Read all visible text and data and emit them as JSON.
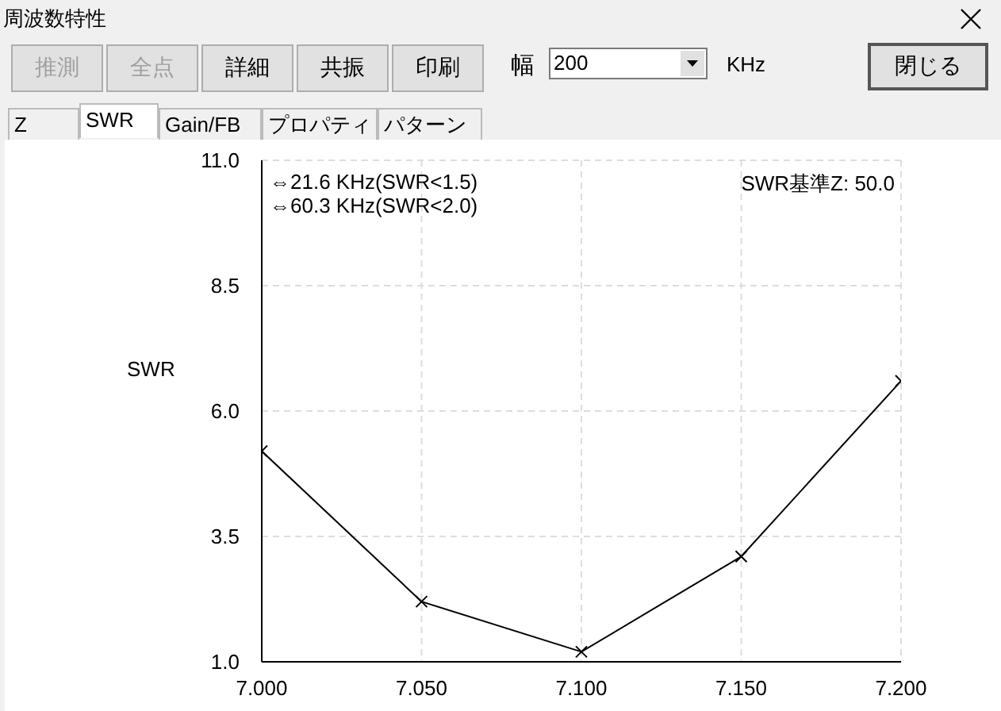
{
  "chart_data": {
    "type": "line",
    "title": "周波数特性",
    "ylabel": "SWR",
    "x": [
      7.0,
      7.05,
      7.1,
      7.15,
      7.2
    ],
    "series": [
      {
        "color": "#000000",
        "values": [
          5.2,
          2.2,
          1.2,
          3.1,
          6.6
        ]
      }
    ],
    "xlim": [
      7.0,
      7.2
    ],
    "xticks": [
      {
        "value": 7.0,
        "label": "7.000"
      },
      {
        "value": 7.05,
        "label": "7.050"
      },
      {
        "value": 7.1,
        "label": "7.100"
      },
      {
        "value": 7.15,
        "label": "7.150"
      },
      {
        "value": 7.2,
        "label": "7.200"
      }
    ],
    "ylim": [
      1,
      11
    ],
    "yticks": [
      {
        "value": 1,
        "label": "1.0"
      },
      {
        "value": 3.5,
        "label": "3.5"
      },
      {
        "value": 6,
        "label": "6.0"
      },
      {
        "value": 8.5,
        "label": "8.5"
      },
      {
        "value": 11,
        "label": "11.0"
      }
    ],
    "grid": true,
    "marker": "cross",
    "line_style": "solid",
    "legend": false,
    "annotations": [
      "推測",
      "全点",
      "詳細",
      "共振",
      "印刷",
      "幅",
      "200",
      "KHz",
      "閉じる",
      "Z",
      "SWR",
      "Gain/FB",
      "プロパティ",
      "パターン",
      "⇔21.6 KHz(SWR<1.5)",
      "⇔60.3 KHz(SWR<2.0)",
      "SWR基準Z: 50.0"
    ]
  }
}
